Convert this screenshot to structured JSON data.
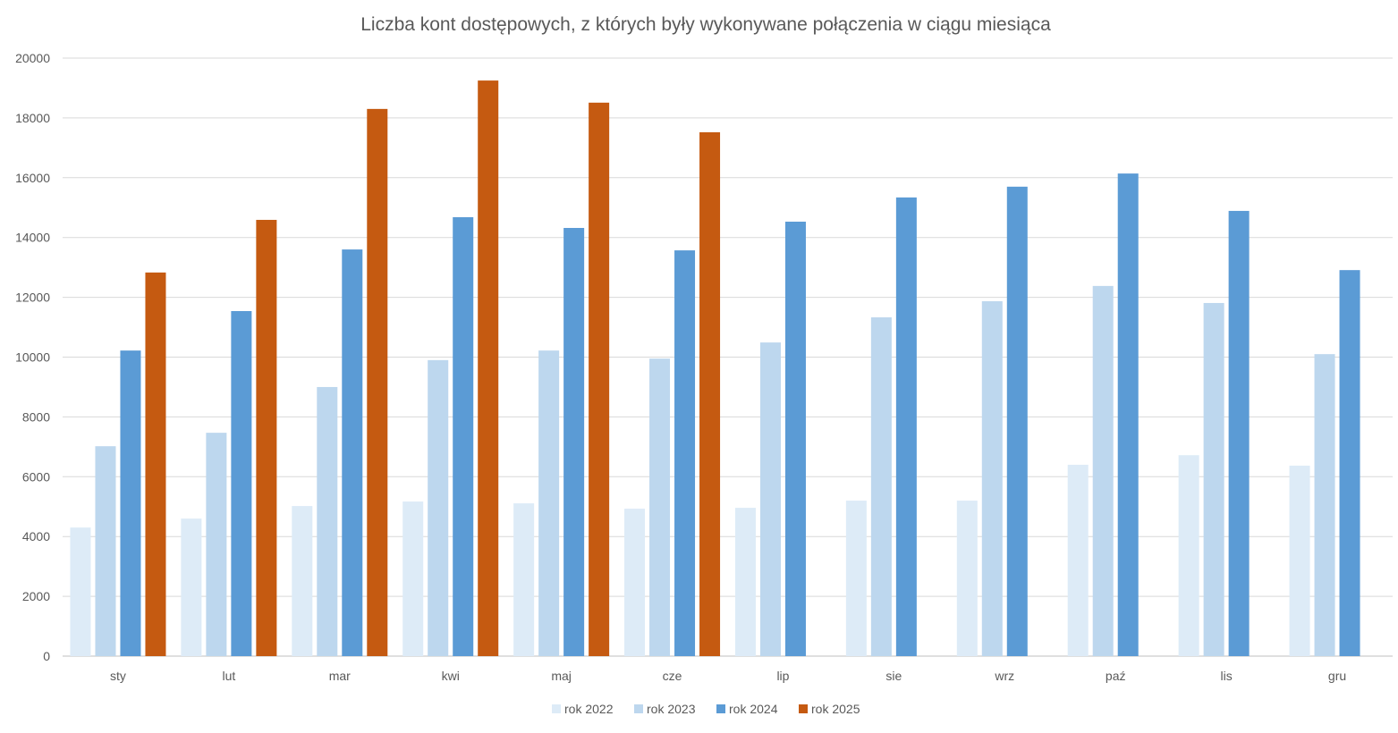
{
  "chart_data": {
    "type": "bar",
    "title": "Liczba kont dostępowych, z których były wykonywane połączenia w ciągu miesiąca",
    "xlabel": "",
    "ylabel": "",
    "ylim": [
      0,
      20000
    ],
    "yticks": [
      0,
      2000,
      4000,
      6000,
      8000,
      10000,
      12000,
      14000,
      16000,
      18000,
      20000
    ],
    "grid": true,
    "legend_position": "bottom",
    "categories": [
      "sty",
      "lut",
      "mar",
      "kwi",
      "maj",
      "cze",
      "lip",
      "sie",
      "wrz",
      "paź",
      "lis",
      "gru"
    ],
    "series": [
      {
        "name": "rok 2022",
        "color": "#DDEBF7",
        "values": [
          4300,
          4600,
          5020,
          5170,
          5110,
          4930,
          4960,
          5200,
          5200,
          6400,
          6720,
          6370
        ]
      },
      {
        "name": "rok 2023",
        "color": "#BDD7EE",
        "values": [
          7020,
          7470,
          9000,
          9900,
          10220,
          9950,
          10490,
          11330,
          11870,
          12380,
          11810,
          10100
        ]
      },
      {
        "name": "rok 2024",
        "color": "#5B9BD5",
        "values": [
          10220,
          11540,
          13600,
          14680,
          14320,
          13570,
          14530,
          15340,
          15700,
          16140,
          14890,
          12910
        ]
      },
      {
        "name": "rok 2025",
        "color": "#C55A11",
        "values": [
          12830,
          14590,
          18300,
          19250,
          18510,
          17520,
          null,
          null,
          null,
          null,
          null,
          null
        ]
      }
    ]
  }
}
